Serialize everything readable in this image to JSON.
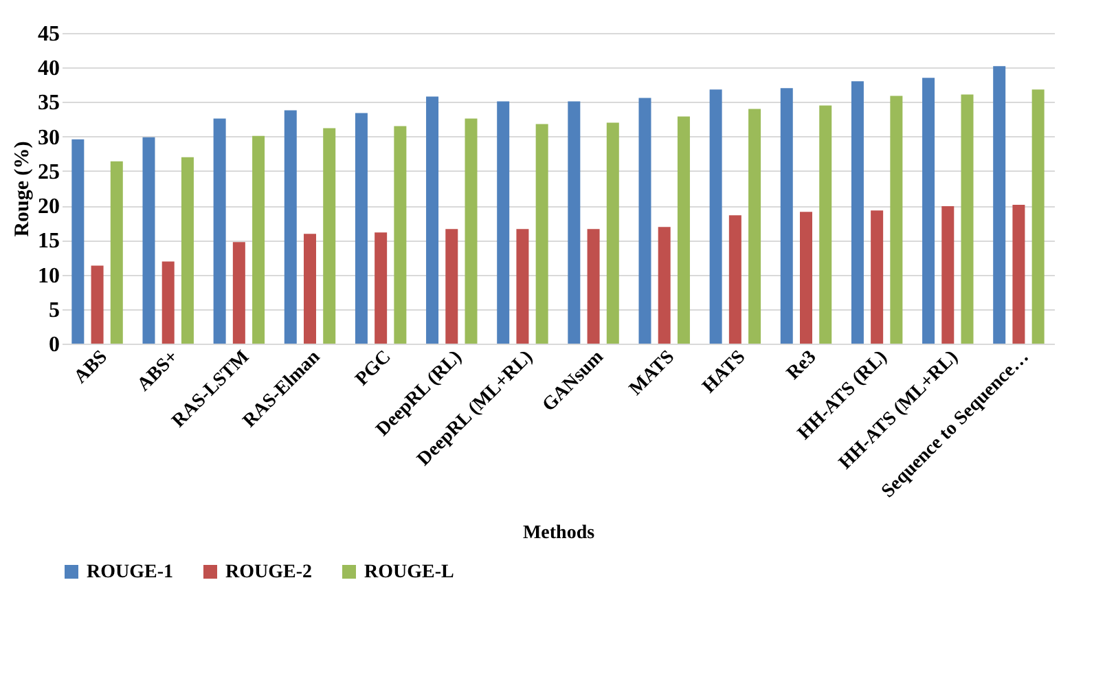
{
  "chart_data": {
    "type": "bar",
    "xlabel": "Methods",
    "ylabel": "Rouge (%)",
    "categories": [
      "ABS",
      "ABS+",
      "RAS-LSTM",
      "RAS-Elman",
      "PGC",
      "DeepRL (RL)",
      "DeepRL (ML+RL)",
      "GANsum",
      "MATS",
      "HATS",
      "Re3",
      "HH-ATS (RL)",
      "HH-ATS (ML+RL)",
      "Sequence to Sequence…"
    ],
    "series": [
      {
        "name": "ROUGE-1",
        "color": "#4f81bd",
        "values": [
          29.6,
          29.9,
          32.6,
          33.8,
          33.4,
          35.8,
          35.1,
          35.1,
          35.6,
          36.8,
          37.0,
          38.0,
          38.5,
          40.2
        ]
      },
      {
        "name": "ROUGE-2",
        "color": "#c0504d",
        "values": [
          11.3,
          11.9,
          14.7,
          15.9,
          16.1,
          16.6,
          16.6,
          16.6,
          16.9,
          18.6,
          19.1,
          19.3,
          19.9,
          20.1
        ]
      },
      {
        "name": "ROUGE-L",
        "color": "#9bbb59",
        "values": [
          26.4,
          27.0,
          30.1,
          31.2,
          31.5,
          32.6,
          31.8,
          32.0,
          32.9,
          34.0,
          34.5,
          35.9,
          36.1,
          36.8
        ]
      }
    ],
    "ylim": [
      0,
      45
    ],
    "yticks": [
      0,
      5,
      10,
      15,
      20,
      25,
      30,
      35,
      40,
      45
    ],
    "grid": "y",
    "legend": "bottom"
  }
}
